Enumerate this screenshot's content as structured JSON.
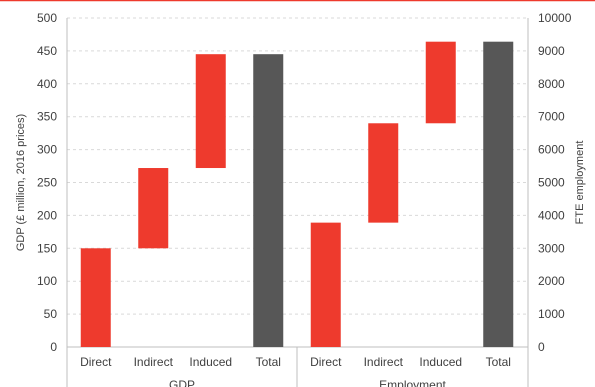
{
  "colors": {
    "increment": "#ee3a2d",
    "total": "#575757",
    "grid": "#d9d9d9",
    "top_rule": "#ee3a2d",
    "axis": "#bfbfbf",
    "text": "#404040"
  },
  "chart_data": {
    "type": "bar",
    "subtype": "waterfall",
    "grid": true,
    "legend": "none",
    "groups": [
      {
        "label": "GDP",
        "axis": "left",
        "categories": [
          "Direct",
          "Indirect",
          "Induced",
          "Total"
        ],
        "base": [
          0,
          150,
          272,
          0
        ],
        "values": [
          150,
          122,
          173,
          445
        ],
        "kind": [
          "increment",
          "increment",
          "increment",
          "total"
        ]
      },
      {
        "label": "Employment",
        "axis": "right",
        "categories": [
          "Direct",
          "Indirect",
          "Induced",
          "Total"
        ],
        "base": [
          0,
          3780,
          6800,
          0
        ],
        "values": [
          3780,
          3020,
          2480,
          9280
        ],
        "kind": [
          "increment",
          "increment",
          "increment",
          "total"
        ]
      }
    ],
    "y_left": {
      "label": "GDP (£ million, 2016 prices)",
      "range": [
        0,
        500
      ],
      "ticks": [
        0,
        50,
        100,
        150,
        200,
        250,
        300,
        350,
        400,
        450,
        500
      ]
    },
    "y_right": {
      "label": "FTE employment",
      "range": [
        0,
        10000
      ],
      "ticks": [
        0,
        1000,
        2000,
        3000,
        4000,
        5000,
        6000,
        7000,
        8000,
        9000,
        10000
      ]
    }
  }
}
